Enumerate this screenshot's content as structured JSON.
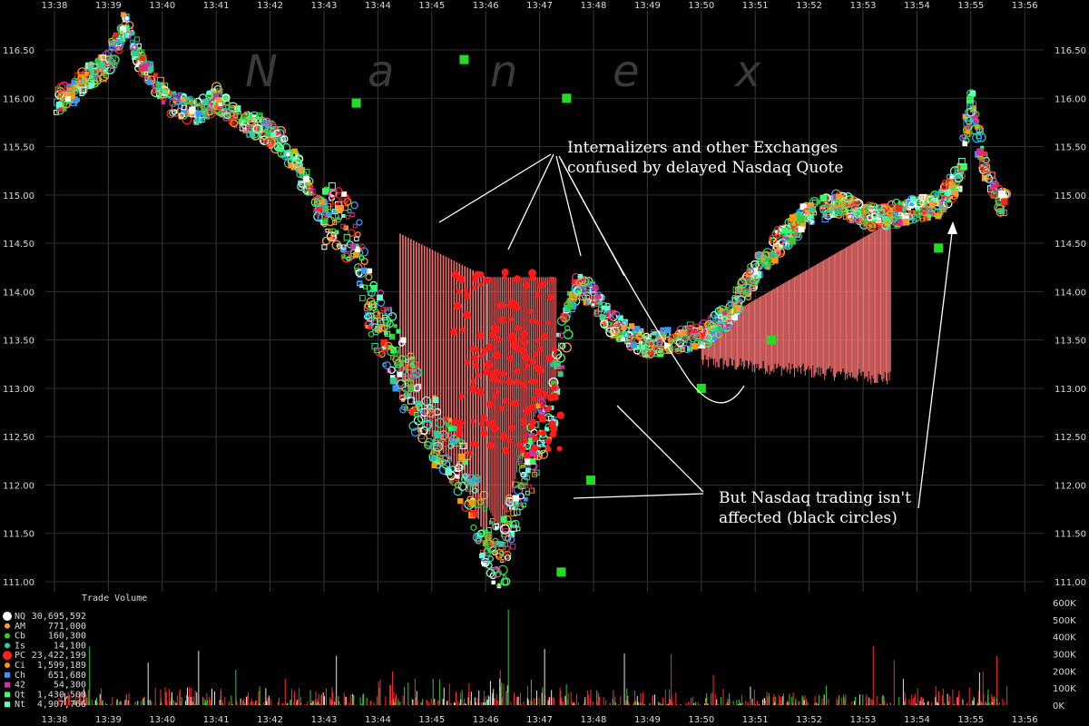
{
  "chart_data": {
    "type": "scatter",
    "watermark": "N a n e x",
    "x_ticks": [
      "13:38",
      "13:39",
      "13:40",
      "13:41",
      "13:42",
      "13:43",
      "13:44",
      "13:45",
      "13:46",
      "13:47",
      "13:48",
      "13:49",
      "13:50",
      "13:51",
      "13:52",
      "13:53",
      "13:54",
      "13:55",
      "13:56"
    ],
    "y_ticks": [
      "116.50",
      "116.00",
      "115.50",
      "115.00",
      "114.50",
      "114.00",
      "113.50",
      "113.00",
      "112.50",
      "112.00",
      "111.50",
      "111.00"
    ],
    "ylim": [
      111.0,
      116.5
    ],
    "volume_title": "Trade Volume",
    "volume_ticks": [
      "600K",
      "500K",
      "400K",
      "300K",
      "200K",
      "100K",
      "0K"
    ],
    "volume_ylim": [
      0,
      600000
    ],
    "legend": [
      {
        "code": "NQ",
        "value": "30,695,592",
        "color": "#ffffff",
        "shape": "circle-large"
      },
      {
        "code": "AM",
        "value": "771,000",
        "color": "#ff9933",
        "shape": "circle"
      },
      {
        "code": "Cb",
        "value": "160,300",
        "color": "#33cc33",
        "shape": "circle"
      },
      {
        "code": "Is",
        "value": "14,100",
        "color": "#33cc99",
        "shape": "circle"
      },
      {
        "code": "PC",
        "value": "23,422,199",
        "color": "#ff2020",
        "shape": "circle-large"
      },
      {
        "code": "Ci",
        "value": "1,599,189",
        "color": "#ff9900",
        "shape": "circle"
      },
      {
        "code": "Ch",
        "value": "651,680",
        "color": "#3399ff",
        "shape": "square"
      },
      {
        "code": "42",
        "value": "54,300",
        "color": "#cc3399",
        "shape": "square"
      },
      {
        "code": "Qt",
        "value": "1,430,500",
        "color": "#33ff66",
        "shape": "square"
      },
      {
        "code": "Nt",
        "value": "4,907,766",
        "color": "#66ffcc",
        "shape": "square"
      }
    ],
    "price_path_minutes": [
      0,
      0.3,
      0.6,
      1.0,
      1.3,
      1.5,
      1.8,
      2.2,
      2.7,
      3.0,
      3.4,
      3.8,
      4.2,
      4.6,
      5.0,
      5.3,
      5.6,
      5.9,
      6.2,
      6.5,
      6.8,
      7.1,
      7.4,
      7.7,
      8.0,
      8.3,
      8.6,
      8.9,
      9.2,
      9.45,
      9.7,
      10.0,
      10.3,
      10.7,
      11.0,
      11.5,
      12.0,
      12.5,
      13.0,
      13.5,
      14.0,
      14.5,
      15.0,
      15.3,
      15.6,
      16.0,
      16.4,
      16.8,
      17.0,
      17.2,
      17.4,
      17.6,
      17.8,
      18.0
    ],
    "price_path_values": [
      115.95,
      116.05,
      116.2,
      116.35,
      116.8,
      116.5,
      116.2,
      115.95,
      115.85,
      116.0,
      115.8,
      115.7,
      115.55,
      115.2,
      114.8,
      114.7,
      114.55,
      113.8,
      113.5,
      113.1,
      112.8,
      112.5,
      112.3,
      112.0,
      111.5,
      111.2,
      111.9,
      112.4,
      112.8,
      113.6,
      114.1,
      113.95,
      113.7,
      113.55,
      113.45,
      113.5,
      113.55,
      113.75,
      114.2,
      114.55,
      114.8,
      114.9,
      114.8,
      114.75,
      114.8,
      114.85,
      114.9,
      115.2,
      116.0,
      115.4,
      115.1,
      114.9,
      114.85,
      114.9
    ],
    "annotations": [
      {
        "lines": [
          "Internalizers and other Exchanges",
          "confused by delayed Nasdaq Quote"
        ]
      },
      {
        "lines": [
          "But Nasdaq trading isn't",
          "affected (black circles)"
        ]
      }
    ]
  }
}
